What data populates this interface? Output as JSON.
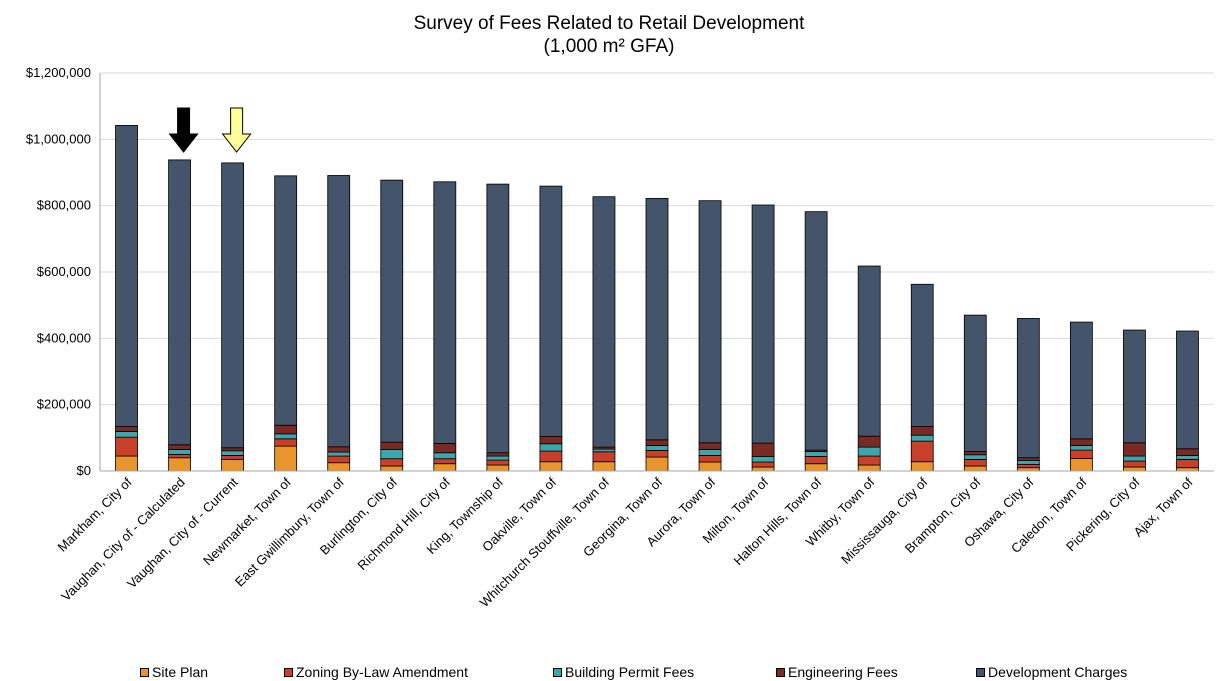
{
  "chart_data": {
    "type": "bar",
    "stacked": true,
    "title": "Survey of Fees Related to Retail Development",
    "subtitle": "(1,000 m² GFA)",
    "xlabel": "",
    "ylabel": "",
    "ylim": [
      0,
      1200000
    ],
    "yticks": [
      0,
      200000,
      400000,
      600000,
      800000,
      1000000,
      1200000
    ],
    "ytick_labels": [
      "$0",
      "$200,000",
      "$400,000",
      "$600,000",
      "$800,000",
      "$1,000,000",
      "$1,200,000"
    ],
    "grid": true,
    "legend_position": "bottom",
    "categories": [
      "Markham, City of",
      "Vaughan, City of - Calculated",
      "Vaughan, City of - Current",
      "Newmarket, Town of",
      "East Gwillimbury, Town of",
      "Burlington, City of",
      "Richmond Hill, City of",
      "King, Township of",
      "Oakville, Town of",
      "Whitchurch Stouffville, Town of",
      "Georgina, Town of",
      "Aurora, Town of",
      "Milton, Town of",
      "Halton Hills, Town of",
      "Whitby, Town of",
      "Mississauga, City of",
      "Brampton, City of",
      "Oshawa, City of",
      "Caledon, Town of",
      "Pickering, City of",
      "Ajax, Town of"
    ],
    "series": [
      {
        "name": "Site Plan",
        "color": "#e8952e",
        "values": [
          45000,
          40000,
          35000,
          75000,
          25000,
          15000,
          22000,
          18000,
          28000,
          28000,
          42000,
          27000,
          12000,
          22000,
          18000,
          28000,
          15000,
          10000,
          38000,
          12000,
          10000
        ]
      },
      {
        "name": "Zoning By-Law Amendment",
        "color": "#c8402a",
        "values": [
          57000,
          10000,
          12000,
          22000,
          20000,
          22000,
          15000,
          15000,
          32000,
          30000,
          20000,
          20000,
          15000,
          22000,
          27000,
          62000,
          20000,
          10000,
          25000,
          18000,
          25000
        ]
      },
      {
        "name": "Building Permit Fees",
        "color": "#3aa6ae",
        "values": [
          17000,
          15000,
          14000,
          15000,
          12000,
          28000,
          18000,
          12000,
          22000,
          8000,
          15000,
          18000,
          17000,
          15000,
          27000,
          18000,
          14000,
          12000,
          14000,
          15000,
          12000
        ]
      },
      {
        "name": "Engineering Fees",
        "color": "#7b2a23",
        "values": [
          15000,
          14000,
          9000,
          26000,
          16000,
          22000,
          28000,
          10000,
          22000,
          6000,
          17000,
          20000,
          40000,
          4000,
          33000,
          26000,
          10000,
          8000,
          20000,
          40000,
          20000
        ]
      },
      {
        "name": "Development Charges",
        "color": "#44546a",
        "values": [
          908000,
          859000,
          859000,
          752000,
          818000,
          790000,
          789000,
          810000,
          755000,
          755000,
          728000,
          730000,
          718000,
          719000,
          513000,
          429000,
          411000,
          420000,
          352000,
          340000,
          355000
        ]
      }
    ],
    "annotations": [
      {
        "type": "arrow",
        "category": "Vaughan, City of - Calculated",
        "color": "#000000"
      },
      {
        "type": "arrow",
        "category": "Vaughan, City of - Current",
        "color": "#ffff99"
      }
    ]
  }
}
